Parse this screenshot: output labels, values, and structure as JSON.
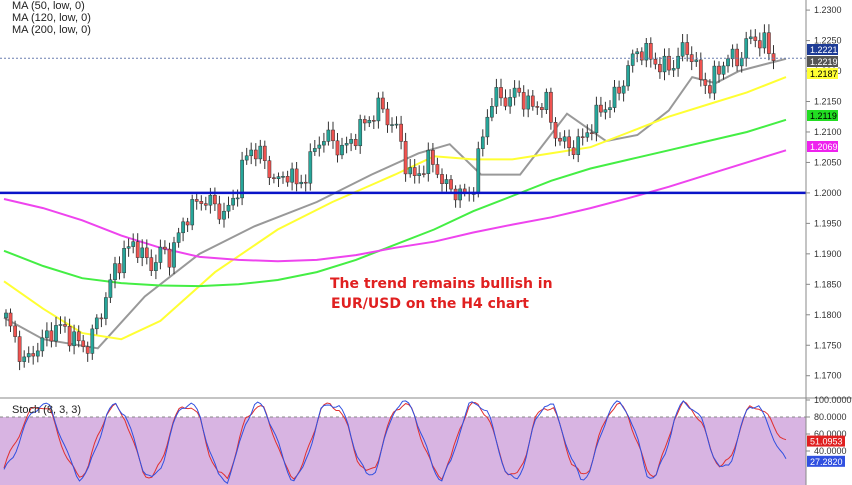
{
  "legend": {
    "ma50": "MA (50, low, 0)",
    "ma120": "MA (120, low, 0)",
    "ma200": "MA (200, low, 0)"
  },
  "stoch_label": "Stoch (8, 3, 3)",
  "annotation": {
    "line1": "The trend remains bullish in",
    "line2": "EUR/USD on the H4 chart"
  },
  "chart_data": [
    {
      "type": "candlestick",
      "title": "",
      "xlabel": "",
      "ylabel": "",
      "ylim": [
        1.167,
        1.231
      ],
      "y_ticks": [
        "1.2300",
        "1.2250",
        "1.2200",
        "1.2150",
        "1.2100",
        "1.2050",
        "1.2000",
        "1.1950",
        "1.1900",
        "1.1850",
        "1.1800",
        "1.1750",
        "1.1700"
      ],
      "price_badges": [
        {
          "label": "1.2221",
          "value": 1.2221,
          "color": "#1e3c96",
          "text_color": "#ffffff"
        },
        {
          "label": "1.2219",
          "value": 1.2219,
          "color": "#555555",
          "text_color": "#ffffff"
        },
        {
          "label": "1.2187",
          "value": 1.2187,
          "color": "#ffff33",
          "text_color": "#000000"
        },
        {
          "label": "1.2119",
          "value": 1.2119,
          "color": "#22dd22",
          "text_color": "#000000"
        },
        {
          "label": "1.2069",
          "value": 1.2069,
          "color": "#ee22ee",
          "text_color": "#ffffff"
        }
      ],
      "support_line": {
        "value": 1.2,
        "color": "#0a14c8"
      },
      "current_price_line": 1.2221,
      "up_color": "#26a69a",
      "down_color": "#ef5350",
      "close_path": [
        1.1795,
        1.176,
        1.172,
        1.174,
        1.1755,
        1.1775,
        1.178,
        1.1768,
        1.1752,
        1.1748,
        1.179,
        1.183,
        1.188,
        1.19,
        1.192,
        1.1895,
        1.188,
        1.1905,
        1.1895,
        1.1935,
        1.197,
        1.1985,
        1.199,
        1.1975,
        1.1965,
        1.199,
        1.205,
        1.2075,
        1.206,
        1.203,
        1.2015,
        1.204,
        1.2005,
        1.204,
        1.208,
        1.2095,
        1.208,
        1.207,
        1.209,
        1.211,
        1.2125,
        1.2145,
        1.2115,
        1.21,
        1.203,
        1.2025,
        1.2055,
        1.2045,
        1.201,
        1.2005,
        1.1995,
        1.2,
        1.208,
        1.215,
        1.216,
        1.215,
        1.217,
        1.2145,
        1.214,
        1.2155,
        1.21,
        1.208,
        1.2075,
        1.2085,
        1.211,
        1.2135,
        1.2145,
        1.2165,
        1.22,
        1.2235,
        1.223,
        1.2215,
        1.2205,
        1.221,
        1.2235,
        1.223,
        1.2185,
        1.2175,
        1.22,
        1.2225,
        1.2215,
        1.2245,
        1.2255,
        1.2245,
        1.2221
      ],
      "series": [
        {
          "name": "MA (50, low, 0)",
          "color": "#999999",
          "x": [
            0,
            0.05,
            0.12,
            0.18,
            0.25,
            0.32,
            0.4,
            0.47,
            0.53,
            0.57,
            0.61,
            0.66,
            0.72,
            0.77,
            0.81,
            0.85,
            0.88,
            0.91,
            0.94,
            0.97,
            1.0
          ],
          "values": [
            1.1795,
            1.176,
            1.1745,
            1.183,
            1.19,
            1.1945,
            1.1985,
            1.203,
            1.2065,
            1.208,
            1.203,
            1.203,
            1.213,
            1.2085,
            1.2095,
            1.2135,
            1.219,
            1.218,
            1.22,
            1.221,
            1.222
          ]
        },
        {
          "name": "MA (120, low, 0)",
          "color": "#ffff33",
          "x": [
            0,
            0.05,
            0.1,
            0.15,
            0.2,
            0.27,
            0.35,
            0.42,
            0.5,
            0.55,
            0.6,
            0.65,
            0.7,
            0.75,
            0.8,
            0.85,
            0.9,
            0.95,
            1.0
          ],
          "values": [
            1.1855,
            1.181,
            1.177,
            1.176,
            1.179,
            1.187,
            1.194,
            1.1985,
            1.203,
            1.206,
            1.2055,
            1.2055,
            1.2065,
            1.2075,
            1.21,
            1.2125,
            1.2145,
            1.2165,
            1.219
          ]
        },
        {
          "name": "MA (200, low, 0)",
          "color": "#44ee44",
          "x": [
            0,
            0.05,
            0.1,
            0.15,
            0.2,
            0.25,
            0.3,
            0.35,
            0.4,
            0.45,
            0.5,
            0.55,
            0.6,
            0.65,
            0.7,
            0.75,
            0.8,
            0.85,
            0.9,
            0.95,
            1.0
          ],
          "values": [
            1.1905,
            1.188,
            1.186,
            1.1852,
            1.1848,
            1.1847,
            1.185,
            1.1857,
            1.187,
            1.189,
            1.1915,
            1.194,
            1.197,
            1.1995,
            1.202,
            1.204,
            1.2055,
            1.207,
            1.2085,
            1.21,
            1.212
          ]
        },
        {
          "name": "",
          "color": "#ee44ee",
          "x": [
            0,
            0.05,
            0.1,
            0.15,
            0.2,
            0.25,
            0.3,
            0.35,
            0.4,
            0.45,
            0.5,
            0.55,
            0.6,
            0.65,
            0.7,
            0.75,
            0.8,
            0.85,
            0.9,
            0.95,
            1.0
          ],
          "values": [
            1.199,
            1.1975,
            1.1955,
            1.193,
            1.191,
            1.1895,
            1.189,
            1.1888,
            1.189,
            1.1898,
            1.191,
            1.192,
            1.1935,
            1.1948,
            1.196,
            1.1975,
            1.1992,
            1.201,
            1.203,
            1.205,
            1.207
          ]
        }
      ]
    },
    {
      "type": "line",
      "title": "Stoch (8, 3, 3)",
      "ylim": [
        0,
        100
      ],
      "y_ticks": [
        "100.0000",
        "80.0000",
        "60.0000",
        "40.0000"
      ],
      "overbought": 80,
      "oversold": 20,
      "zone_color": "#d8b4e2",
      "value_badges": [
        {
          "label": "51.0953",
          "value": 51.0953,
          "color": "#e02020",
          "text_color": "#ffffff"
        },
        {
          "label": "27.2820",
          "value": 27.282,
          "color": "#3050e0",
          "text_color": "#ffffff"
        }
      ],
      "series": [
        {
          "name": "",
          "color": "#e03030",
          "values": [
            20,
            45,
            70,
            88,
            95,
            85,
            55,
            25,
            10,
            20,
            55,
            85,
            92,
            80,
            45,
            15,
            8,
            30,
            70,
            90,
            95,
            78,
            40,
            12,
            10,
            40,
            80,
            92,
            88,
            60,
            25,
            10,
            18,
            55,
            88,
            95,
            90,
            65,
            30,
            12,
            25,
            60,
            90,
            96,
            85,
            50,
            20,
            10,
            30,
            70,
            92,
            95,
            80,
            45,
            15,
            8,
            35,
            75,
            93,
            90,
            60,
            25,
            10,
            22,
            58,
            88,
            94,
            85,
            50,
            18,
            12,
            40,
            80,
            95,
            90,
            70,
            40,
            20,
            30,
            65,
            90,
            94,
            80,
            65,
            51
          ]
        },
        {
          "name": "",
          "color": "#3050e0",
          "values": [
            15,
            35,
            62,
            85,
            96,
            90,
            62,
            30,
            8,
            15,
            48,
            82,
            95,
            84,
            50,
            18,
            5,
            25,
            64,
            92,
            97,
            82,
            45,
            10,
            6,
            35,
            76,
            95,
            90,
            64,
            28,
            6,
            14,
            50,
            86,
            97,
            92,
            70,
            33,
            9,
            20,
            56,
            92,
            98,
            88,
            55,
            22,
            6,
            26,
            66,
            94,
            97,
            84,
            48,
            12,
            4,
            30,
            72,
            96,
            92,
            64,
            28,
            6,
            18,
            54,
            90,
            96,
            88,
            54,
            14,
            8,
            36,
            78,
            97,
            92,
            74,
            42,
            16,
            26,
            62,
            92,
            96,
            70,
            50,
            27
          ]
        }
      ]
    }
  ]
}
